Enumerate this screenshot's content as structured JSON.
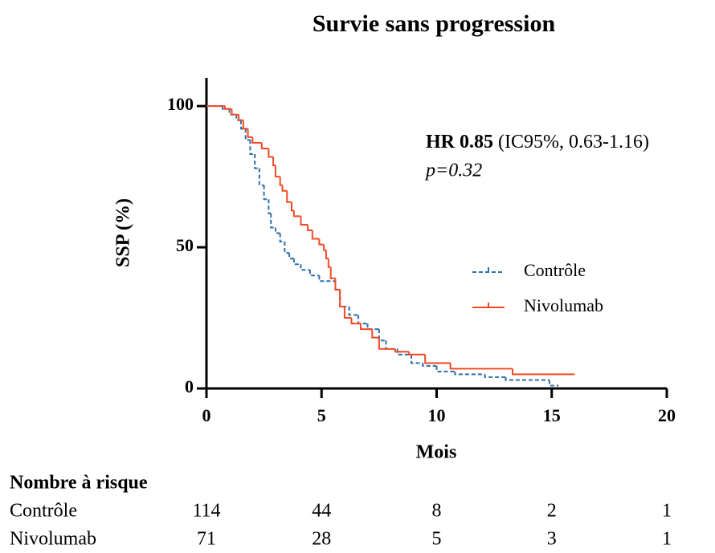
{
  "chart_data": {
    "type": "step",
    "title": "Survie sans progression",
    "x_label": "Mois",
    "y_label": "SSP (%)",
    "xlim": [
      0,
      20
    ],
    "ylim": [
      0,
      110
    ],
    "xticks": [
      0,
      5,
      10,
      15,
      20
    ],
    "yticks": [
      0,
      50,
      100
    ],
    "legend": "right",
    "annotation": {
      "hr": "HR 0.85",
      "ci": "(IC95%, 0.63-1.16)",
      "p": "p=0.32"
    },
    "series": [
      {
        "name": "Contrôle",
        "color": "#2f6fa8",
        "dash": true,
        "x": [
          0,
          0.7,
          1.0,
          1.3,
          1.5,
          1.7,
          1.9,
          2.1,
          2.3,
          2.5,
          2.7,
          2.8,
          3.0,
          3.2,
          3.4,
          3.6,
          3.8,
          4.1,
          4.5,
          4.9,
          5.6,
          5.8,
          6.2,
          6.6,
          7.0,
          7.5,
          7.8,
          8.3,
          8.9,
          9.4,
          10.0,
          10.8,
          12.1,
          13.0,
          14.9,
          15.3
        ],
        "values": [
          100,
          99,
          97,
          95,
          92,
          88,
          83,
          78,
          72,
          67,
          62,
          57,
          55,
          52,
          48,
          46,
          44,
          42,
          40,
          38,
          35,
          29,
          26,
          23,
          21,
          17,
          14,
          12,
          9,
          8,
          6,
          5,
          4,
          3,
          1,
          1
        ]
      },
      {
        "name": "Nivolumab",
        "color": "#f04a24",
        "dash": false,
        "x": [
          0,
          0.8,
          1.1,
          1.4,
          1.6,
          1.8,
          2.0,
          2.4,
          2.7,
          2.9,
          3.0,
          3.2,
          3.3,
          3.5,
          3.7,
          3.8,
          4.1,
          4.4,
          4.6,
          4.9,
          5.1,
          5.2,
          5.3,
          5.4,
          5.6,
          5.8,
          6.0,
          6.3,
          6.7,
          7.2,
          7.5,
          8.2,
          8.8,
          9.5,
          10.6,
          13.3,
          16.0
        ],
        "values": [
          100,
          99,
          97,
          95,
          92,
          89,
          87,
          85,
          82,
          79,
          75,
          72,
          70,
          66,
          63,
          61,
          58,
          56,
          53,
          51,
          49,
          46,
          43,
          39,
          35,
          29,
          25,
          23,
          21,
          18,
          14,
          13,
          12,
          9,
          7,
          5,
          5
        ]
      }
    ],
    "risk_table": {
      "title": "Nombre à risque",
      "rows": [
        {
          "name": "Contrôle",
          "values": [
            114,
            44,
            8,
            2,
            1
          ]
        },
        {
          "name": "Nivolumab",
          "values": [
            71,
            28,
            5,
            3,
            1
          ]
        }
      ]
    }
  }
}
